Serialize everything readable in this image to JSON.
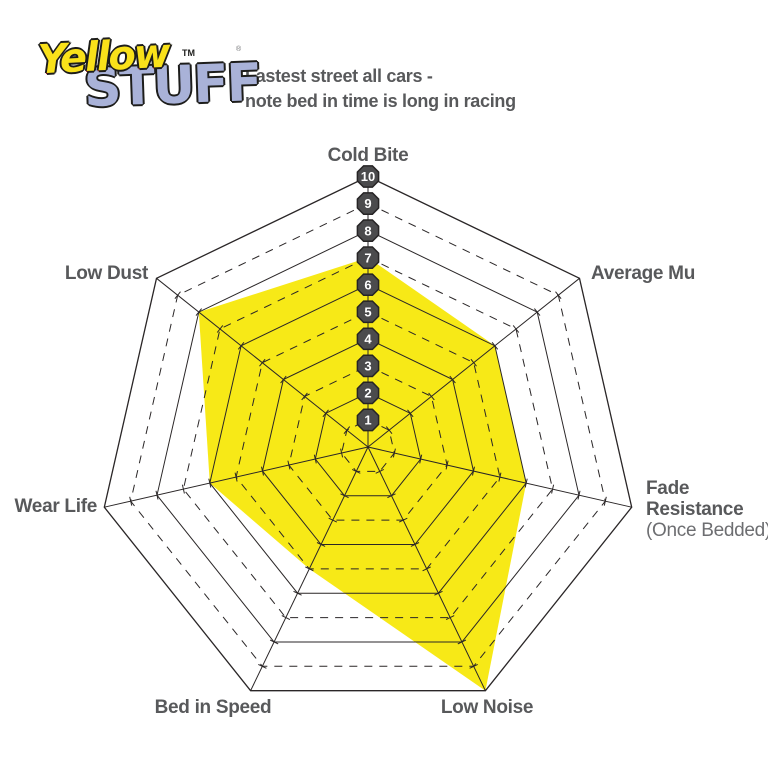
{
  "logo": {
    "word1": "Yellow",
    "word2": "STUFF",
    "trademark": "TM",
    "registered": "®"
  },
  "subtitle": {
    "line1": "Fastest street all cars -",
    "line2": "note bed in time is long in racing"
  },
  "colors": {
    "series_fill": "#f7e917",
    "grid_line": "#2a2627",
    "axis_label": "#58595b",
    "sub_label": "#6d6e71",
    "badge_fill": "#4b4b4d",
    "badge_stroke": "#262425",
    "badge_text": "#ffffff",
    "logo_yellow": "#f9e11a",
    "logo_lavender": "#a9b2d8"
  },
  "chart_data": {
    "type": "radar",
    "title": "",
    "axes": [
      {
        "label": "Cold Bite",
        "lines": [
          "Cold Bite"
        ],
        "value": 7
      },
      {
        "label": "Average Mu",
        "lines": [
          "Average Mu"
        ],
        "value": 6
      },
      {
        "label": "Fade Resistance",
        "lines": [
          "Fade",
          "Resistance"
        ],
        "sublabel": "(Once Bedded)",
        "value": 6
      },
      {
        "label": "Low Noise",
        "lines": [
          "Low Noise"
        ],
        "value": 10
      },
      {
        "label": "Bed in Speed",
        "lines": [
          "Bed in Speed"
        ],
        "value": 5
      },
      {
        "label": "Wear Life",
        "lines": [
          "Wear Life"
        ],
        "value": 6
      },
      {
        "label": "Low Dust",
        "lines": [
          "Low Dust"
        ],
        "value": 8
      }
    ],
    "scale_min": 0,
    "scale_max": 10,
    "ring_ticks": [
      1,
      2,
      3,
      4,
      5,
      6,
      7,
      8,
      9,
      10
    ],
    "grid": {
      "rings": 10,
      "odd_rings_dashed": true,
      "legend": "none"
    }
  }
}
